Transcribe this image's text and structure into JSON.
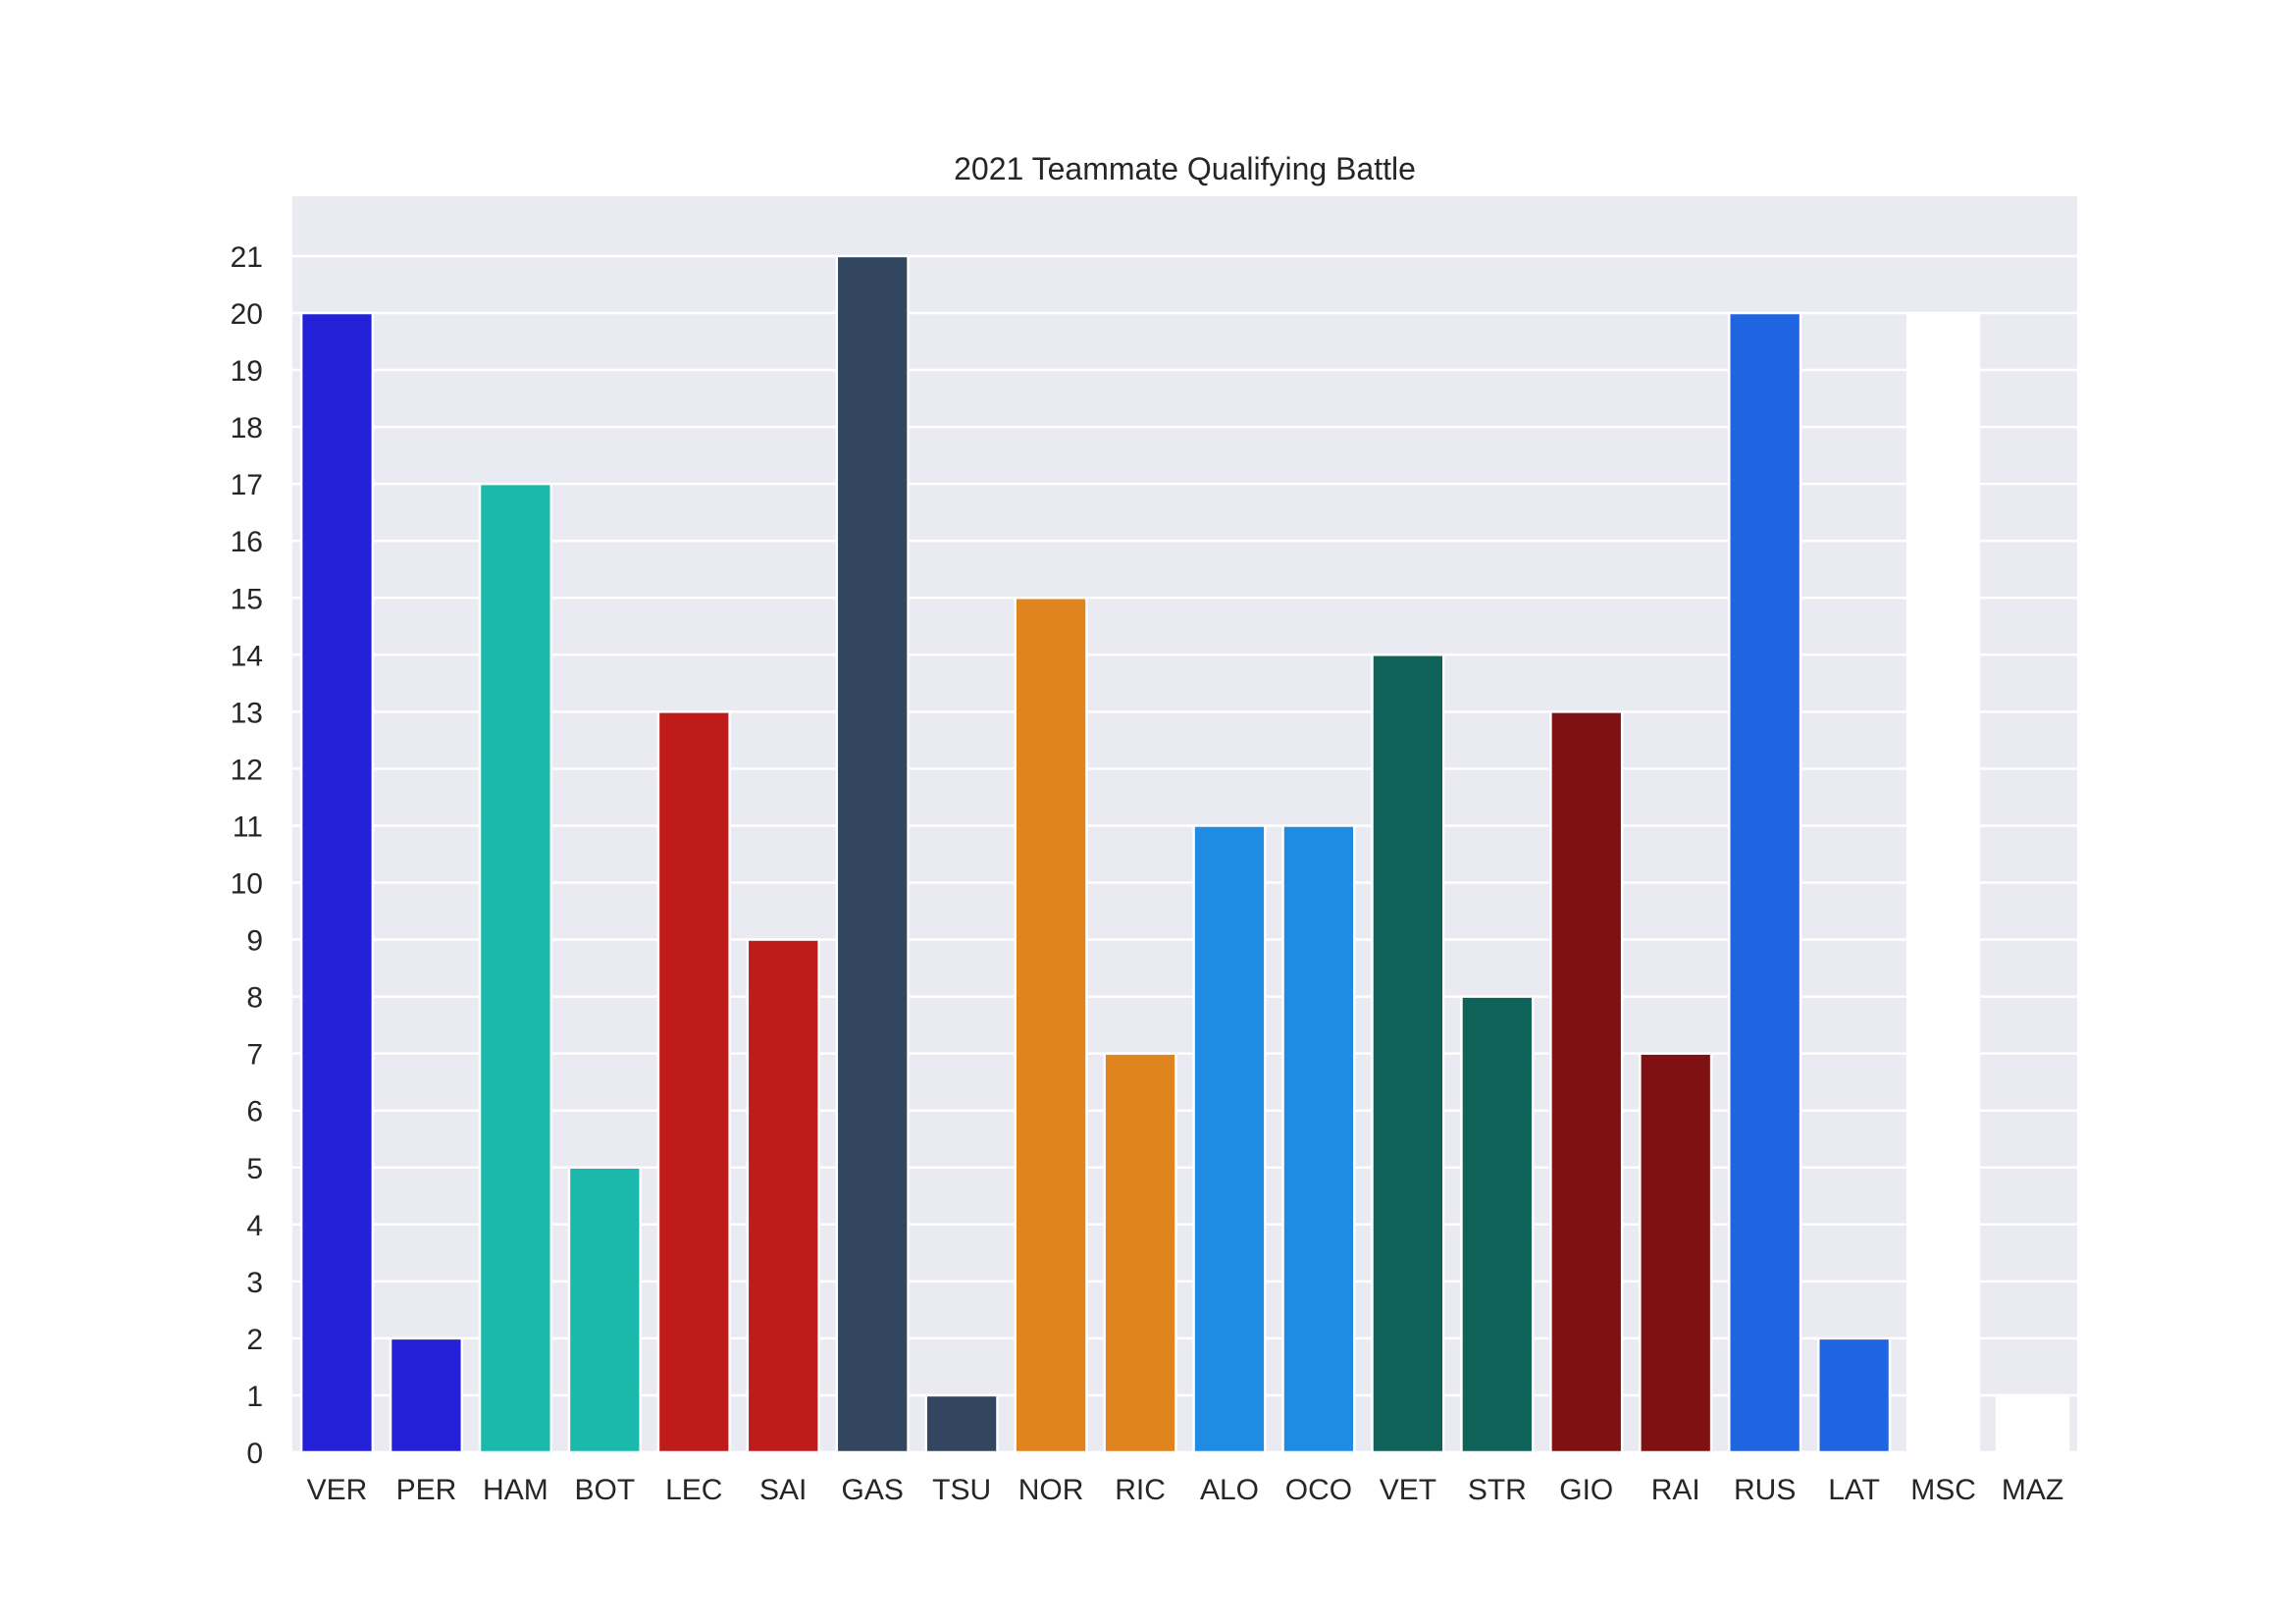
{
  "chart_data": {
    "type": "bar",
    "title": "2021 Teammate Qualifying Battle",
    "xlabel": "",
    "ylabel": "",
    "categories": [
      "VER",
      "PER",
      "HAM",
      "BOT",
      "LEC",
      "SAI",
      "GAS",
      "TSU",
      "NOR",
      "RIC",
      "ALO",
      "OCO",
      "VET",
      "STR",
      "GIO",
      "RAI",
      "RUS",
      "LAT",
      "MSC",
      "MAZ"
    ],
    "values": [
      20,
      2,
      17,
      5,
      13,
      9,
      21,
      1,
      15,
      7,
      11,
      11,
      14,
      8,
      13,
      7,
      20,
      2,
      20,
      1
    ],
    "colors": [
      "#2320d8",
      "#2320d8",
      "#1ab9ab",
      "#1ab9ab",
      "#c01b1b",
      "#c01b1b",
      "#334660",
      "#334660",
      "#df841e",
      "#df841e",
      "#208be3",
      "#208be3",
      "#0e6258",
      "#0e6258",
      "#7f1112",
      "#7f1112",
      "#1f64e0",
      "#1f64e0",
      "#ffffff",
      "#ffffff"
    ],
    "yticks": [
      0,
      1,
      2,
      3,
      4,
      5,
      6,
      7,
      8,
      9,
      10,
      11,
      12,
      13,
      14,
      15,
      16,
      17,
      18,
      19,
      20,
      21
    ],
    "ylim": [
      0,
      22.05
    ],
    "grid": true,
    "background": "#eaeaf2",
    "grid_color": "#ffffff"
  }
}
